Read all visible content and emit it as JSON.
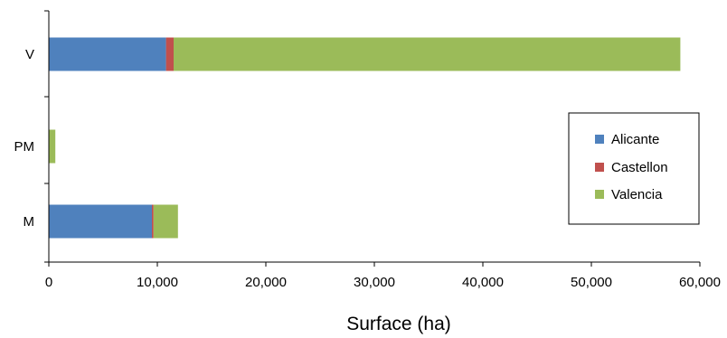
{
  "chart_data": {
    "type": "bar",
    "orientation": "horizontal",
    "stacked": true,
    "categories": [
      "V",
      "PM",
      "M"
    ],
    "series": [
      {
        "name": "Alicante",
        "color": "#4f81bd",
        "values": [
          10800,
          0,
          9500
        ]
      },
      {
        "name": "Castellon",
        "color": "#c0504d",
        "values": [
          700,
          0,
          150
        ]
      },
      {
        "name": "Valencia",
        "color": "#9bbb59",
        "values": [
          46700,
          600,
          2250
        ]
      }
    ],
    "title": "",
    "xlabel": "Surface (ha)",
    "ylabel": "",
    "xlim": [
      0,
      60000
    ],
    "xticks": [
      0,
      10000,
      20000,
      30000,
      40000,
      50000,
      60000
    ],
    "xtick_labels": [
      "0",
      "10,000",
      "20,000",
      "30,000",
      "40,000",
      "50,000",
      "60,000"
    ],
    "grid": false,
    "legend_position": "right"
  }
}
